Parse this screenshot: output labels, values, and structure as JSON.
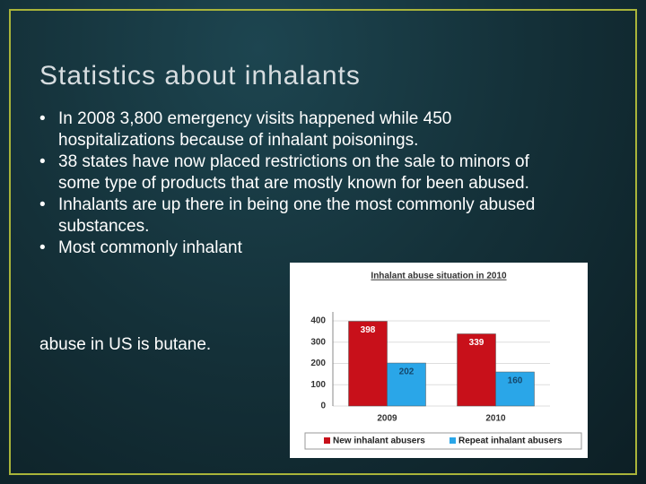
{
  "slide": {
    "title": "Statistics about inhalants",
    "bullets": [
      "In 2008 3,800 emergency visits happened while 450 hospitalizations  because of inhalant poisonings.",
      "38 states have now placed restrictions on the sale to minors of some type of products that are mostly known for been abused.",
      "Inhalants are up there in being one the most commonly abused substances.",
      "Most commonly inhalant"
    ],
    "continuation": "abuse in US is butane."
  },
  "chart_data": {
    "type": "bar",
    "title": "Inhalant abuse situation in 2010",
    "categories": [
      "2009",
      "2010"
    ],
    "series": [
      {
        "name": "New inhalant abusers",
        "color": "#c8101a",
        "values": [
          398,
          339
        ]
      },
      {
        "name": "Repeat inhalant abusers",
        "color": "#2aa6e8",
        "values": [
          202,
          160
        ]
      }
    ],
    "ylim": [
      0,
      400
    ],
    "yticks": [
      0,
      100,
      200,
      300,
      400
    ],
    "grid": true,
    "legend": "bottom"
  }
}
